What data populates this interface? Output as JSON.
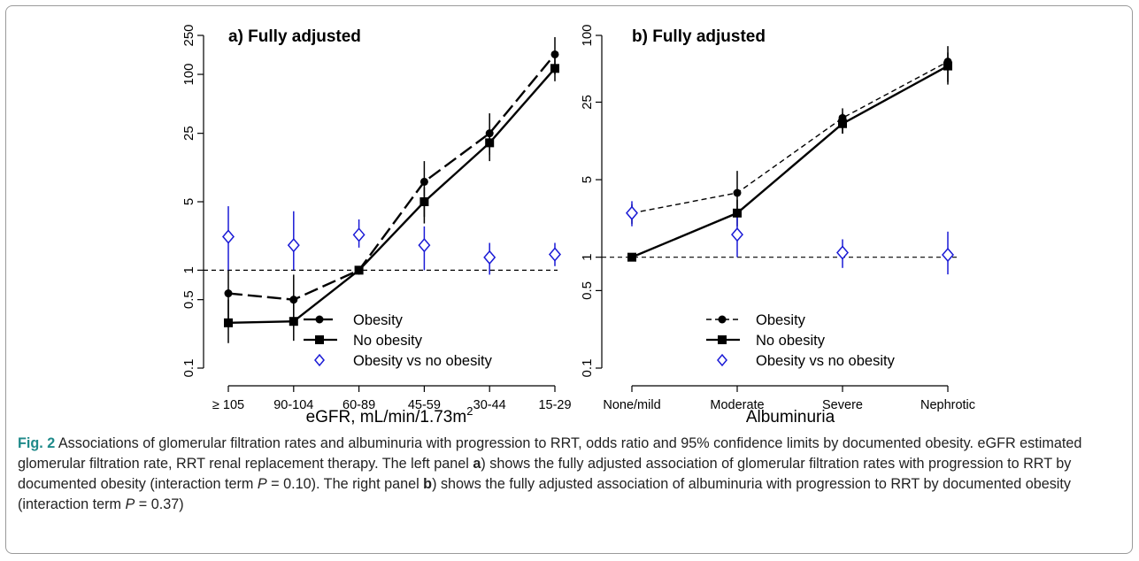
{
  "chart_data": [
    {
      "type": "line",
      "panel_title": "a) Fully adjusted",
      "xlabel": "eGFR, mL/min/1.73m",
      "xlabel_superscript": "2",
      "categories": [
        "≥ 105",
        "90-104",
        "60-89",
        "45-59",
        "30-44",
        "15-29"
      ],
      "y_scale": "log",
      "ylim": [
        0.1,
        250
      ],
      "y_ticks": [
        0.1,
        0.5,
        1,
        5,
        25,
        100,
        250
      ],
      "y_tick_labels": [
        "0.1",
        "0.5",
        "1",
        "5",
        "25",
        "100",
        "250"
      ],
      "reference_line": 1,
      "legend_position": "bottom-center",
      "series": [
        {
          "name": "Obesity",
          "line": "dashed-long",
          "marker": "circle",
          "color": "#000000",
          "values": [
            0.58,
            0.5,
            1.0,
            8.0,
            25,
            160
          ],
          "ci_lower": [
            0.3,
            0.28,
            0.9,
            3.5,
            15,
            100
          ],
          "ci_upper": [
            1.0,
            0.9,
            1.1,
            13,
            40,
            240
          ]
        },
        {
          "name": "No obesity",
          "line": "solid",
          "marker": "square",
          "color": "#000000",
          "values": [
            0.29,
            0.3,
            1.0,
            5.0,
            20,
            115
          ],
          "ci_lower": [
            0.18,
            0.19,
            0.95,
            3.0,
            13,
            85
          ],
          "ci_upper": [
            0.5,
            0.55,
            1.05,
            7.0,
            27,
            150
          ]
        },
        {
          "name": "Obesity vs no obesity",
          "line": "none",
          "marker": "diamond-open",
          "color": "#1a1ad6",
          "values": [
            2.2,
            1.8,
            2.3,
            1.8,
            1.35,
            1.45
          ],
          "ci_lower": [
            1.0,
            1.0,
            1.7,
            1.0,
            0.9,
            1.1
          ],
          "ci_upper": [
            4.5,
            4.0,
            3.3,
            2.8,
            1.9,
            1.9
          ]
        }
      ]
    },
    {
      "type": "line",
      "panel_title": "b) Fully adjusted",
      "xlabel": "Albuminuria",
      "categories": [
        "None/mild",
        "Moderate",
        "Severe",
        "Nephrotic"
      ],
      "y_scale": "log",
      "ylim": [
        0.1,
        100
      ],
      "y_ticks": [
        0.1,
        0.5,
        1,
        5,
        25,
        100
      ],
      "y_tick_labels": [
        "0.1",
        "0.5",
        "1",
        "5",
        "25",
        "100"
      ],
      "reference_line": 1,
      "legend_position": "bottom-center",
      "series": [
        {
          "name": "Obesity",
          "line": "dashed",
          "marker": "circle",
          "color": "#000000",
          "values": [
            2.5,
            3.8,
            18,
            58
          ],
          "ci_lower": [
            2.0,
            2.3,
            13,
            38
          ],
          "ci_upper": [
            3.0,
            6.0,
            22,
            80
          ]
        },
        {
          "name": "No obesity",
          "line": "solid",
          "marker": "square",
          "color": "#000000",
          "values": [
            1.0,
            2.5,
            16,
            53
          ],
          "ci_lower": [
            0.95,
            1.9,
            13,
            36
          ],
          "ci_upper": [
            1.05,
            3.3,
            20,
            70
          ]
        },
        {
          "name": "Obesity vs no obesity",
          "line": "none",
          "marker": "diamond-open",
          "color": "#1a1ad6",
          "values": [
            2.5,
            1.6,
            1.1,
            1.05
          ],
          "ci_lower": [
            1.9,
            1.0,
            0.8,
            0.7
          ],
          "ci_upper": [
            3.2,
            2.3,
            1.45,
            1.7
          ]
        }
      ]
    }
  ],
  "caption": {
    "fig_label": "Fig. 2",
    "text_1": " Associations of glomerular filtration rates and albuminuria with progression to RRT, odds ratio and 95% confidence limits by documented obesity. eGFR estimated glomerular filtration rate, RRT renal replacement therapy. The left panel ",
    "panel_a": "a",
    "text_2": ") shows the fully adjusted association of glomerular filtration rates with progression to RRT by documented obesity (interaction term ",
    "p_symbol": "P",
    "p_value_a": " = 0.10). The right panel ",
    "panel_b": "b",
    "text_3": ") shows the fully adjusted association of albuminuria with progression to RRT by documented obesity (interaction term ",
    "p_value_b": " = 0.37)"
  }
}
